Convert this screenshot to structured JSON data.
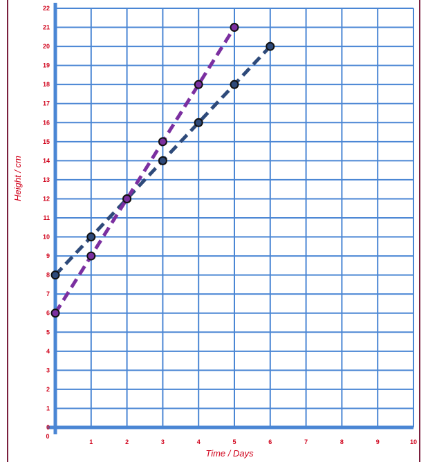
{
  "chart_data": {
    "type": "line",
    "title": "",
    "xlabel": "Time / Days",
    "ylabel": "Height / cm",
    "xlim": [
      0,
      10
    ],
    "ylim": [
      0,
      22
    ],
    "x_ticks": [
      0,
      1,
      2,
      3,
      4,
      5,
      6,
      7,
      8,
      9,
      10
    ],
    "y_ticks": [
      0,
      1,
      2,
      3,
      4,
      5,
      6,
      7,
      8,
      9,
      10,
      11,
      12,
      13,
      14,
      15,
      16,
      17,
      18,
      19,
      20,
      21,
      22
    ],
    "grid": true,
    "legend": "none",
    "colors": {
      "grid": "#4a86d4",
      "axis": "#4a86d4",
      "tick_text": "#d0021b",
      "label_text": "#d0021b",
      "border": "#7a1f3d"
    },
    "series": [
      {
        "color": "#2e4a7a",
        "marker_fill": "#2e4a7a",
        "line_style": "dashed",
        "x": [
          0,
          1,
          2,
          3,
          4,
          5,
          6
        ],
        "y": [
          8,
          10,
          12,
          14,
          16,
          18,
          20
        ]
      },
      {
        "color": "#7b2fa0",
        "marker_fill": "#7b2fa0",
        "line_style": "dashed",
        "x": [
          0,
          1,
          2,
          3,
          4,
          5
        ],
        "y": [
          6,
          9,
          12,
          15,
          18,
          21
        ]
      }
    ]
  }
}
